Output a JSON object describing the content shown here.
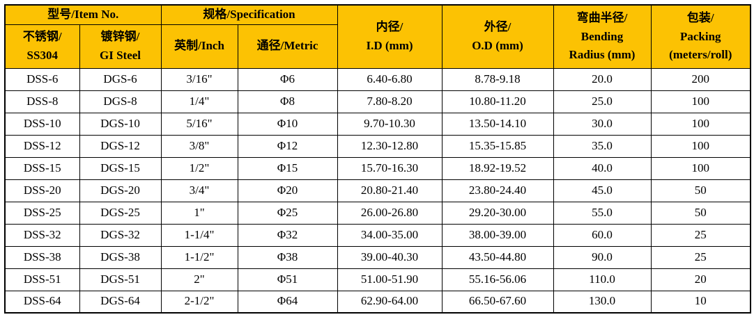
{
  "colors": {
    "header_bg": "#FCC203",
    "border": "#000000",
    "cell_bg": "#FFFFFF",
    "text": "#000000"
  },
  "table": {
    "header": {
      "item_no_group": "型号/Item No.",
      "spec_group": "规格/Specification",
      "ss304": "不锈钢/\nSS304",
      "gi_steel": "镀锌钢/\nGI Steel",
      "inch": "英制/Inch",
      "metric": "通径/Metric",
      "id_mm": "内径/\nI.D (mm)",
      "od_mm": "外径/\nO.D (mm)",
      "bending_radius": "弯曲半径/\nBending\nRadius (mm)",
      "packing": "包装/\nPacking\n(meters/roll)"
    },
    "rows": [
      [
        "DSS-6",
        "DGS-6",
        "3/16\"",
        "Φ6",
        "6.40-6.80",
        "8.78-9.18",
        "20.0",
        "200"
      ],
      [
        "DSS-8",
        "DGS-8",
        "1/4\"",
        "Φ8",
        "7.80-8.20",
        "10.80-11.20",
        "25.0",
        "100"
      ],
      [
        "DSS-10",
        "DGS-10",
        "5/16\"",
        "Φ10",
        "9.70-10.30",
        "13.50-14.10",
        "30.0",
        "100"
      ],
      [
        "DSS-12",
        "DGS-12",
        "3/8\"",
        "Φ12",
        "12.30-12.80",
        "15.35-15.85",
        "35.0",
        "100"
      ],
      [
        "DSS-15",
        "DGS-15",
        "1/2\"",
        "Φ15",
        "15.70-16.30",
        "18.92-19.52",
        "40.0",
        "100"
      ],
      [
        "DSS-20",
        "DGS-20",
        "3/4\"",
        "Φ20",
        "20.80-21.40",
        "23.80-24.40",
        "45.0",
        "50"
      ],
      [
        "DSS-25",
        "DGS-25",
        "1\"",
        "Φ25",
        "26.00-26.80",
        "29.20-30.00",
        "55.0",
        "50"
      ],
      [
        "DSS-32",
        "DGS-32",
        "1-1/4\"",
        "Φ32",
        "34.00-35.00",
        "38.00-39.00",
        "60.0",
        "25"
      ],
      [
        "DSS-38",
        "DGS-38",
        "1-1/2\"",
        "Φ38",
        "39.00-40.30",
        "43.50-44.80",
        "90.0",
        "25"
      ],
      [
        "DSS-51",
        "DGS-51",
        "2\"",
        "Φ51",
        "51.00-51.90",
        "55.16-56.06",
        "110.0",
        "20"
      ],
      [
        "DSS-64",
        "DGS-64",
        "2-1/2\"",
        "Φ64",
        "62.90-64.00",
        "66.50-67.60",
        "130.0",
        "10"
      ]
    ]
  }
}
